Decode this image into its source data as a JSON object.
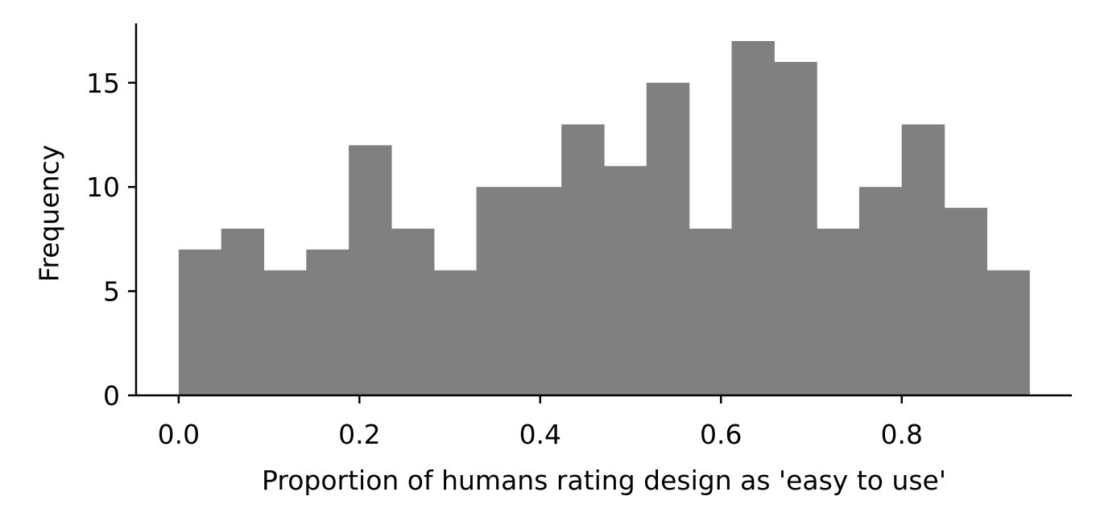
{
  "chart_data": {
    "type": "bar",
    "bin_edges": [
      0.0,
      0.0471,
      0.0941,
      0.1412,
      0.1882,
      0.2353,
      0.2824,
      0.3294,
      0.3765,
      0.4235,
      0.4706,
      0.5176,
      0.5647,
      0.6118,
      0.6588,
      0.7059,
      0.7529,
      0.8,
      0.8471,
      0.8941,
      0.9412
    ],
    "values": [
      7,
      8,
      6,
      7,
      12,
      8,
      6,
      10,
      10,
      13,
      11,
      15,
      8,
      17,
      16,
      8,
      10,
      13,
      9,
      6
    ],
    "title": "",
    "xlabel": "Proportion of humans rating design as 'easy to use'",
    "ylabel": "Frequency",
    "xlim": [
      -0.0471,
      0.9882
    ],
    "ylim": [
      0,
      17.85
    ],
    "xticks": [
      0.0,
      0.2,
      0.4,
      0.6,
      0.8
    ],
    "xtick_labels": [
      "0.0",
      "0.2",
      "0.4",
      "0.6",
      "0.8"
    ],
    "yticks": [
      0,
      5,
      10,
      15
    ],
    "ytick_labels": [
      "0",
      "5",
      "10",
      "15"
    ],
    "bar_color": "#808080",
    "grid": false,
    "legend": "none"
  }
}
